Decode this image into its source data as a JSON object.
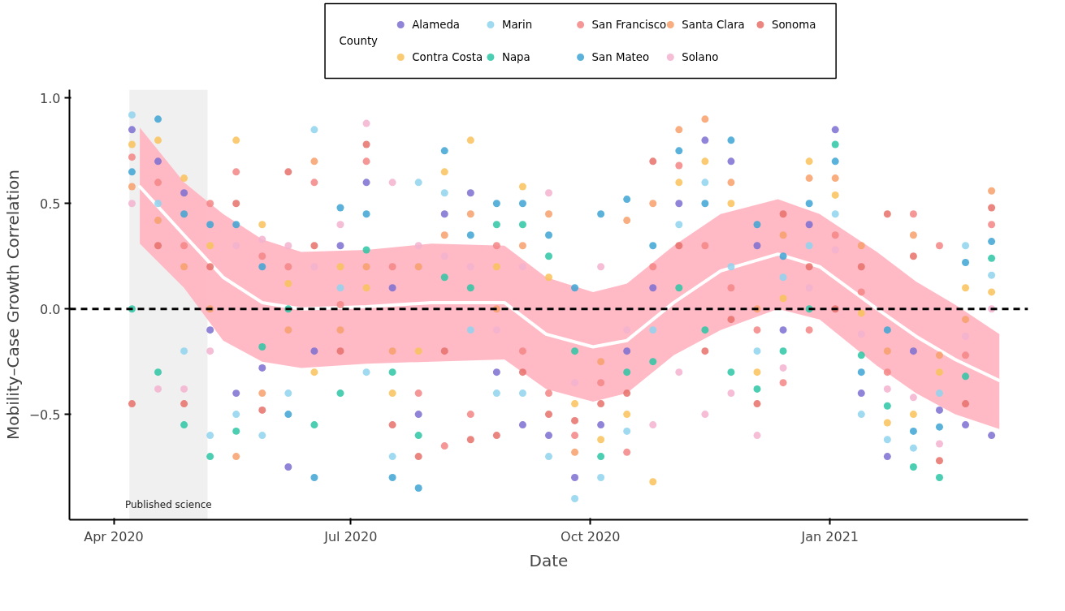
{
  "chart_data": {
    "type": "scatter",
    "xlabel": "Date",
    "ylabel": "Mobility–Case Growth Correlation",
    "legend_title": "County",
    "legend": "top",
    "grid": false,
    "marker": "circle",
    "x": [
      "2020-04-08",
      "2020-04-18",
      "2020-04-28",
      "2020-05-08",
      "2020-05-18",
      "2020-05-28",
      "2020-06-07",
      "2020-06-17",
      "2020-06-27",
      "2020-07-07",
      "2020-07-17",
      "2020-07-27",
      "2020-08-06",
      "2020-08-16",
      "2020-08-26",
      "2020-09-05",
      "2020-09-15",
      "2020-09-25",
      "2020-10-05",
      "2020-10-15",
      "2020-10-25",
      "2020-11-04",
      "2020-11-14",
      "2020-11-24",
      "2020-12-04",
      "2020-12-14",
      "2020-12-24",
      "2021-01-03",
      "2021-01-13",
      "2021-01-23",
      "2021-02-02",
      "2021-02-12",
      "2021-02-22",
      "2021-03-04"
    ],
    "xlim": [
      "2020-03-15",
      "2021-03-18"
    ],
    "xticks": [
      {
        "value": "2020-04-01",
        "label": "Apr 2020"
      },
      {
        "value": "2020-07-01",
        "label": "Jul 2020"
      },
      {
        "value": "2020-10-01",
        "label": "Oct 2020"
      },
      {
        "value": "2021-01-01",
        "label": "Jan 2021"
      }
    ],
    "ylim": [
      -1.0,
      1.04
    ],
    "yticks": [
      {
        "value": -0.5,
        "label": "−0.5"
      },
      {
        "value": 0,
        "label": "0.0"
      },
      {
        "value": 0.5,
        "label": "0.5"
      },
      {
        "value": 1,
        "label": "1.0"
      }
    ],
    "series": [
      {
        "name": "Alameda",
        "color": "#7b6fd0",
        "values": [
          0.85,
          0.7,
          0.55,
          -0.1,
          -0.4,
          -0.28,
          -0.75,
          -0.2,
          0.3,
          0.6,
          0.1,
          -0.5,
          0.45,
          0.55,
          -0.3,
          -0.55,
          -0.6,
          -0.8,
          -0.55,
          -0.2,
          0.1,
          0.5,
          0.8,
          0.7,
          0.3,
          -0.1,
          0.4,
          0.85,
          -0.4,
          -0.7,
          -0.2,
          -0.48,
          -0.55,
          -0.6
        ]
      },
      {
        "name": "Contra Costa",
        "color": "#f9c25a",
        "values": [
          0.78,
          0.8,
          0.62,
          0.3,
          0.8,
          0.4,
          0.12,
          -0.3,
          0.2,
          0.1,
          -0.4,
          -0.2,
          0.65,
          0.8,
          0.2,
          0.58,
          0.15,
          -0.45,
          -0.62,
          -0.5,
          -0.82,
          0.6,
          0.7,
          0.5,
          -0.3,
          0.05,
          0.7,
          0.54,
          -0.02,
          -0.54,
          -0.5,
          -0.3,
          0.1,
          0.08
        ]
      },
      {
        "name": "Marin",
        "color": "#8fd3ef",
        "values": [
          0.92,
          0.5,
          -0.2,
          -0.6,
          -0.5,
          -0.6,
          -0.4,
          0.85,
          0.1,
          -0.3,
          -0.7,
          0.6,
          0.55,
          -0.1,
          -0.4,
          -0.4,
          -0.7,
          -0.9,
          -0.8,
          -0.58,
          -0.1,
          0.4,
          0.6,
          0.2,
          -0.2,
          0.15,
          0.3,
          0.45,
          -0.5,
          -0.62,
          -0.66,
          -0.4,
          0.3,
          0.16
        ]
      },
      {
        "name": "Napa",
        "color": "#2cc6a5",
        "values": [
          0.0,
          -0.3,
          -0.55,
          -0.7,
          -0.58,
          -0.18,
          0.0,
          -0.55,
          -0.4,
          0.28,
          -0.3,
          -0.6,
          0.15,
          0.1,
          0.4,
          0.4,
          0.25,
          -0.2,
          -0.7,
          -0.3,
          -0.25,
          0.1,
          -0.1,
          -0.3,
          -0.38,
          -0.2,
          0.0,
          0.78,
          -0.22,
          -0.46,
          -0.75,
          -0.8,
          -0.32,
          0.24
        ]
      },
      {
        "name": "San Francisco",
        "color": "#f58585",
        "values": [
          0.72,
          0.6,
          0.3,
          0.5,
          0.65,
          0.25,
          0.2,
          0.6,
          0.02,
          0.7,
          0.2,
          -0.4,
          -0.65,
          -0.5,
          0.3,
          -0.2,
          -0.4,
          -0.6,
          -0.35,
          -0.68,
          0.2,
          0.68,
          0.3,
          0.1,
          -0.1,
          -0.35,
          -0.1,
          0.35,
          0.08,
          -0.3,
          0.45,
          0.3,
          -0.22,
          0.4
        ]
      },
      {
        "name": "San Mateo",
        "color": "#3da5d4",
        "values": [
          0.65,
          0.9,
          0.45,
          0.4,
          0.4,
          0.2,
          -0.5,
          -0.8,
          0.48,
          0.45,
          -0.8,
          -0.85,
          0.75,
          0.35,
          0.5,
          0.5,
          0.35,
          0.1,
          0.45,
          0.52,
          0.3,
          0.75,
          0.5,
          0.8,
          0.4,
          0.25,
          0.5,
          0.7,
          -0.3,
          -0.1,
          -0.58,
          -0.56,
          0.22,
          0.32
        ]
      },
      {
        "name": "Santa Clara",
        "color": "#f7a06a",
        "values": [
          0.58,
          0.42,
          0.2,
          0.0,
          -0.7,
          -0.4,
          -0.1,
          0.7,
          -0.1,
          0.2,
          -0.2,
          0.2,
          0.35,
          0.45,
          0.0,
          0.3,
          0.45,
          -0.68,
          -0.25,
          0.42,
          0.5,
          0.85,
          0.9,
          0.6,
          0.0,
          0.35,
          0.62,
          0.62,
          0.3,
          -0.2,
          0.35,
          -0.22,
          -0.05,
          0.56
        ]
      },
      {
        "name": "Solano",
        "color": "#f3b3cf",
        "values": [
          0.5,
          -0.38,
          -0.38,
          -0.2,
          0.3,
          0.33,
          0.3,
          0.2,
          0.4,
          0.88,
          0.6,
          0.3,
          0.25,
          0.2,
          -0.1,
          0.2,
          0.55,
          -0.35,
          0.2,
          -0.1,
          -0.55,
          -0.3,
          -0.5,
          -0.4,
          -0.6,
          -0.28,
          0.1,
          0.28,
          -0.12,
          -0.38,
          -0.42,
          -0.64,
          -0.13,
          0.0
        ]
      },
      {
        "name": "Sonoma",
        "color": "#e8706a",
        "values": [
          -0.45,
          0.3,
          -0.45,
          0.2,
          0.5,
          -0.48,
          0.65,
          0.3,
          -0.2,
          0.78,
          -0.55,
          -0.7,
          -0.2,
          -0.62,
          -0.6,
          -0.3,
          -0.5,
          -0.53,
          -0.45,
          -0.4,
          0.7,
          0.3,
          -0.2,
          -0.05,
          -0.45,
          0.45,
          0.2,
          0.0,
          0.2,
          0.45,
          0.25,
          -0.72,
          -0.45,
          0.48
        ]
      },
      {
        "type": "line",
        "color": "#ffffff",
        "marker": "none",
        "x": [
          "2020-04-11",
          "2020-04-28",
          "2020-05-13",
          "2020-05-28",
          "2020-06-12",
          "2020-07-07",
          "2020-08-01",
          "2020-08-29",
          "2020-09-14",
          "2020-10-02",
          "2020-10-15",
          "2020-11-02",
          "2020-11-20",
          "2020-12-12",
          "2020-12-28",
          "2021-01-19",
          "2021-02-03",
          "2021-02-18",
          "2021-03-07"
        ],
        "values": [
          0.58,
          0.35,
          0.15,
          0.03,
          0.0,
          0.01,
          0.03,
          0.03,
          -0.12,
          -0.18,
          -0.15,
          0.03,
          0.18,
          0.26,
          0.2,
          0.0,
          -0.13,
          -0.24,
          -0.34
        ],
        "lower": [
          0.31,
          0.1,
          -0.15,
          -0.25,
          -0.28,
          -0.26,
          -0.25,
          -0.24,
          -0.38,
          -0.44,
          -0.4,
          -0.22,
          -0.1,
          0.0,
          -0.05,
          -0.27,
          -0.4,
          -0.5,
          -0.57
        ],
        "upper": [
          0.86,
          0.6,
          0.45,
          0.33,
          0.27,
          0.28,
          0.31,
          0.3,
          0.15,
          0.08,
          0.12,
          0.3,
          0.45,
          0.52,
          0.45,
          0.27,
          0.13,
          0.02,
          -0.12
        ]
      }
    ],
    "ref_lines": [
      {
        "axis": "y",
        "value": 0,
        "color": "#000000",
        "line_style": "dashed"
      }
    ],
    "bands": [
      {
        "axis": "x",
        "from": "2020-04-07",
        "to": "2020-05-07",
        "label": "Published science",
        "color": "#f0f0f0"
      }
    ]
  }
}
